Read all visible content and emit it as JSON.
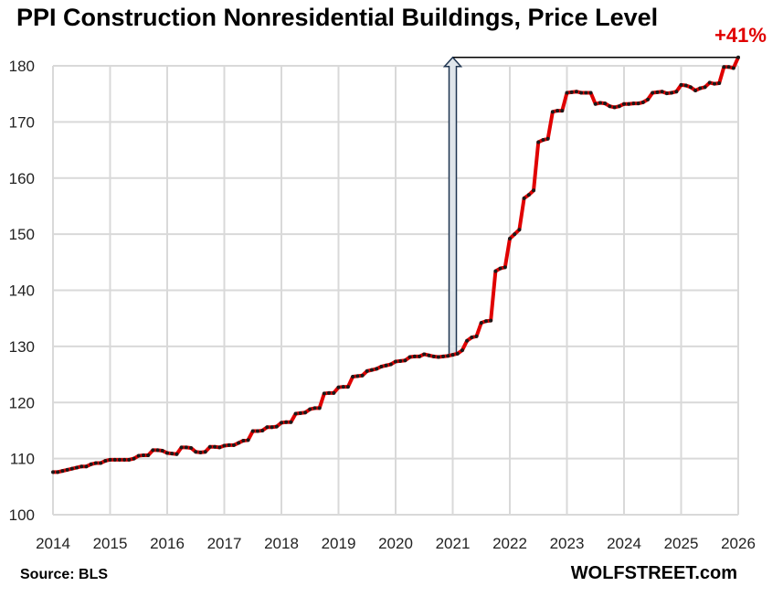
{
  "chart_data": {
    "type": "line",
    "title": "PPI Construction Nonresidential Buildings, Price Level",
    "xlabel": "",
    "ylabel": "",
    "xlim": [
      2014,
      2026
    ],
    "ylim": [
      100,
      180
    ],
    "x_ticks": [
      "2014",
      "2015",
      "2016",
      "2017",
      "2018",
      "2019",
      "2020",
      "2021",
      "2022",
      "2023",
      "2024",
      "2025",
      "2026"
    ],
    "y_ticks": [
      "100",
      "110",
      "120",
      "130",
      "140",
      "150",
      "160",
      "170",
      "180"
    ],
    "grid": true,
    "series": [
      {
        "name": "PPI Construction Nonresidential Buildings",
        "color": "#e00000",
        "marker_color": "#1a1a1a",
        "start": "2014-01",
        "frequency": "monthly",
        "values": [
          107.6,
          107.6,
          107.8,
          108.0,
          108.2,
          108.4,
          108.6,
          108.6,
          109.0,
          109.2,
          109.2,
          109.6,
          109.8,
          109.8,
          109.8,
          109.8,
          109.8,
          110.0,
          110.5,
          110.6,
          110.6,
          111.5,
          111.5,
          111.4,
          111.0,
          110.9,
          110.8,
          112.0,
          112.0,
          111.9,
          111.2,
          111.1,
          111.2,
          112.1,
          112.1,
          112.0,
          112.3,
          112.4,
          112.4,
          112.8,
          113.2,
          113.3,
          114.9,
          114.9,
          115.0,
          115.6,
          115.6,
          115.7,
          116.4,
          116.5,
          116.5,
          118.0,
          118.1,
          118.2,
          118.8,
          119.0,
          119.0,
          121.6,
          121.7,
          121.7,
          122.7,
          122.8,
          122.8,
          124.6,
          124.7,
          124.8,
          125.6,
          125.8,
          126.0,
          126.4,
          126.6,
          126.8,
          127.3,
          127.4,
          127.5,
          128.1,
          128.2,
          128.2,
          128.6,
          128.4,
          128.2,
          128.1,
          128.2,
          128.3,
          128.5,
          128.7,
          129.3,
          131.0,
          131.6,
          131.8,
          134.2,
          134.5,
          134.6,
          143.4,
          143.9,
          144.1,
          149.2,
          150.0,
          150.8,
          156.4,
          157.0,
          157.8,
          166.4,
          166.8,
          167.0,
          171.8,
          172.0,
          172.0,
          175.2,
          175.3,
          175.4,
          175.2,
          175.2,
          175.2,
          173.2,
          173.4,
          173.3,
          172.8,
          172.6,
          172.8,
          173.2,
          173.2,
          173.3,
          173.3,
          173.5,
          174.0,
          175.2,
          175.3,
          175.4,
          175.1,
          175.2,
          175.4,
          176.6,
          176.5,
          176.2,
          175.6,
          176.0,
          176.2,
          177.0,
          176.8,
          176.9,
          179.8,
          179.8,
          179.6,
          181.5
        ]
      }
    ],
    "annotations": [
      {
        "type": "arrow",
        "x": 2021,
        "from": 128.5,
        "to": 181.5
      },
      {
        "type": "hline",
        "y": 181.5,
        "x_from": 2021,
        "x_to": 2026
      },
      {
        "type": "text",
        "text": "+41%",
        "color": "#e00000"
      }
    ]
  },
  "source": "Source: BLS",
  "brand": "WOLFSTREET.com"
}
